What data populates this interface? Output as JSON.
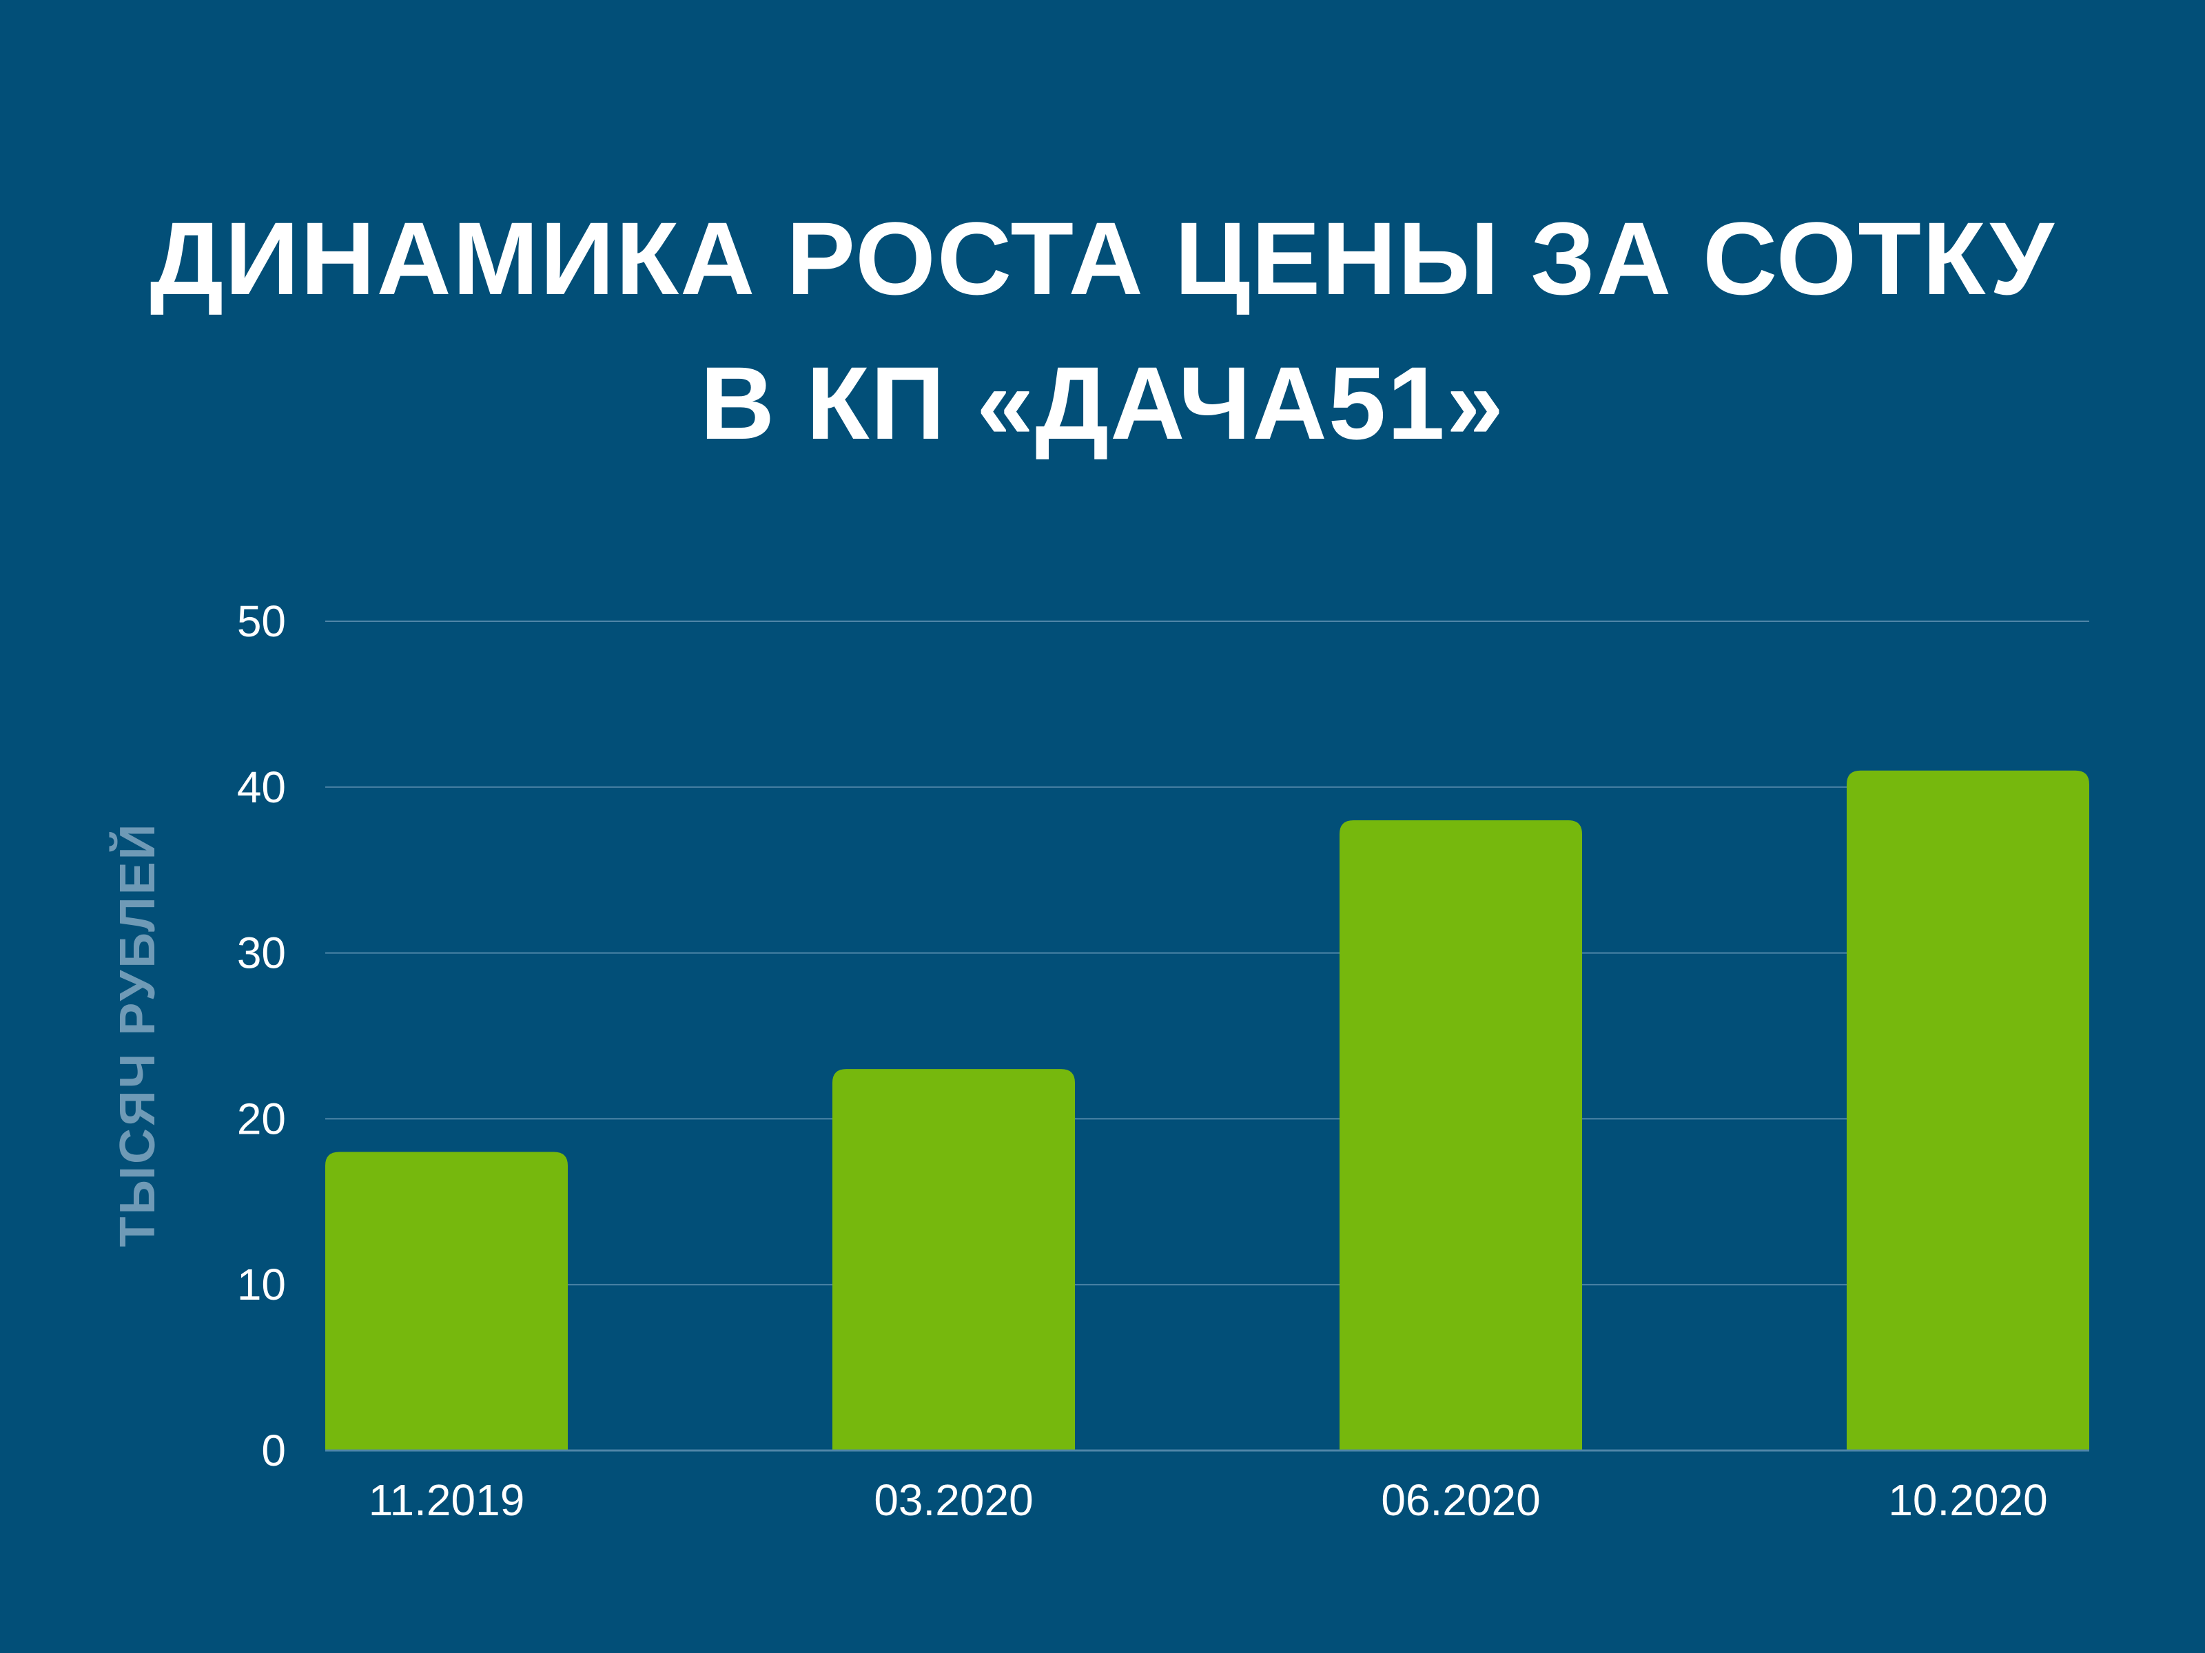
{
  "title": {
    "line1": "ДИНАМИКА РОСТА ЦЕНЫ ЗА СОТКУ",
    "line2": "В КП «ДАЧА51»"
  },
  "colors": {
    "background": "#024f78",
    "bar": "#76b80d",
    "grid": "#4f86a8",
    "axis_title": "#6f9ab6",
    "text": "#ffffff"
  },
  "chart_data": {
    "type": "bar",
    "title": "ДИНАМИКА РОСТА ЦЕНЫ ЗА СОТКУ В КП «ДАЧА51»",
    "categories": [
      "11.2019",
      "03.2020",
      "06.2020",
      "10.2020"
    ],
    "values": [
      18,
      23,
      38,
      41
    ],
    "xlabel": "",
    "ylabel": "ТЫСЯЧ РУБЛЕЙ",
    "ylim": [
      0,
      50
    ],
    "yticks": [
      "0",
      "10",
      "20",
      "30",
      "40",
      "50"
    ],
    "grid": true,
    "legend": "none"
  }
}
